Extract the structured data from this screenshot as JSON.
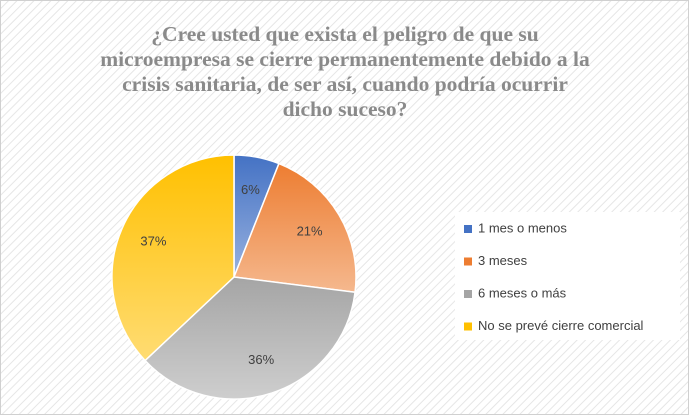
{
  "chart_data": {
    "type": "pie",
    "title": "¿Cree usted que exista el peligro de que su microempresa se cierre permanentemente debido a la crisis sanitaria, de ser así, cuando podría ocurrir dicho suceso?",
    "categories": [
      "1 mes o menos",
      "3 meses",
      "6 meses o más",
      "No se prevé cierre comercial"
    ],
    "values": [
      6,
      21,
      36,
      37
    ],
    "value_labels": [
      "6%",
      "21%",
      "36%",
      "37%"
    ],
    "colors": [
      "#4472c4",
      "#ed7d31",
      "#a5a5a5",
      "#ffc000"
    ],
    "legend": "right"
  }
}
